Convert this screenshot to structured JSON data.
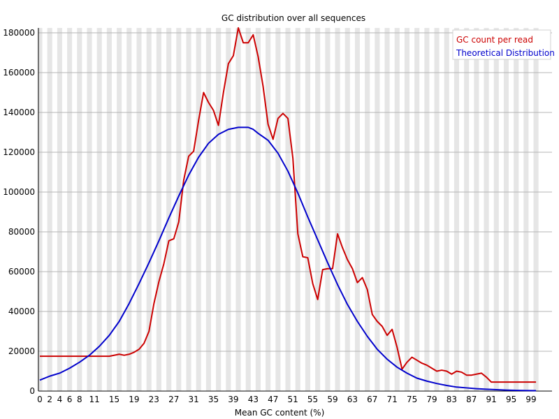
{
  "chart_data": {
    "type": "line",
    "title": "GC distribution over all sequences",
    "xlabel": "Mean GC content (%)",
    "ylabel": "",
    "xlim": [
      0,
      100
    ],
    "ylim": [
      0,
      180000
    ],
    "grid": true,
    "legend_position": "top-right",
    "x_tick_labels": [
      "0",
      "2",
      "4",
      "6",
      "8",
      "11",
      "15",
      "19",
      "23",
      "27",
      "31",
      "35",
      "39",
      "43",
      "47",
      "51",
      "55",
      "59",
      "63",
      "67",
      "71",
      "75",
      "79",
      "83",
      "87",
      "91",
      "95",
      "99"
    ],
    "x_tick_values": [
      0,
      2,
      4,
      6,
      8,
      11,
      15,
      19,
      23,
      27,
      31,
      35,
      39,
      43,
      47,
      51,
      55,
      59,
      63,
      67,
      71,
      75,
      79,
      83,
      87,
      91,
      95,
      99
    ],
    "y_tick_labels": [
      "0",
      "20000",
      "40000",
      "60000",
      "80000",
      "100000",
      "120000",
      "140000",
      "160000",
      "180000"
    ],
    "y_tick_values": [
      0,
      20000,
      40000,
      60000,
      80000,
      100000,
      120000,
      140000,
      160000,
      180000
    ],
    "series": [
      {
        "name": "GC count per read",
        "color": "#cc0000",
        "x": [
          0,
          2,
          4,
          6,
          8,
          10,
          12,
          14,
          16,
          17,
          18,
          19,
          20,
          21,
          22,
          23,
          24,
          25,
          26,
          27,
          28,
          29,
          30,
          31,
          32,
          33,
          34,
          35,
          36,
          37,
          38,
          39,
          40,
          41,
          42,
          43,
          44,
          45,
          46,
          47,
          48,
          49,
          50,
          51,
          52,
          53,
          54,
          55,
          56,
          57,
          58,
          59,
          60,
          61,
          62,
          63,
          64,
          65,
          66,
          67,
          68,
          69,
          70,
          71,
          72,
          73,
          74,
          75,
          76,
          77,
          78,
          79,
          80,
          81,
          82,
          83,
          84,
          85,
          86,
          87,
          88,
          89,
          90,
          91,
          92,
          93,
          94,
          95,
          96,
          97,
          98,
          99,
          100
        ],
        "values": [
          17500,
          17500,
          17500,
          17500,
          17500,
          17500,
          17500,
          17500,
          18500,
          18000,
          18500,
          19500,
          21000,
          24000,
          30000,
          44000,
          55000,
          64000,
          75500,
          76500,
          85000,
          106000,
          118000,
          120500,
          136000,
          150000,
          145000,
          141000,
          133500,
          150000,
          164500,
          168500,
          182500,
          175000,
          175000,
          179000,
          168000,
          153000,
          134000,
          126500,
          137000,
          139500,
          137000,
          117000,
          79000,
          67500,
          67000,
          54000,
          46000,
          61000,
          61500,
          61500,
          79000,
          72000,
          66000,
          61500,
          54500,
          57000,
          51000,
          38500,
          35000,
          32500,
          28000,
          31000,
          22000,
          11000,
          14500,
          17000,
          15500,
          14000,
          13000,
          11500,
          10000,
          10500,
          10000,
          8500,
          10000,
          9500,
          8000,
          8000,
          8500,
          9000,
          7000,
          4500,
          4500,
          4500,
          4500,
          4500,
          4500,
          4500,
          4500,
          4500,
          4500
        ]
      },
      {
        "name": "Theoretical Distribution",
        "color": "#0000cc",
        "x": [
          0,
          2,
          4,
          6,
          8,
          10,
          12,
          14,
          16,
          18,
          20,
          22,
          24,
          26,
          28,
          30,
          32,
          34,
          36,
          38,
          40,
          41,
          42,
          43,
          44,
          46,
          48,
          50,
          52,
          54,
          56,
          58,
          60,
          62,
          64,
          66,
          68,
          70,
          72,
          74,
          76,
          78,
          80,
          82,
          84,
          86,
          88,
          90,
          92,
          94,
          96,
          98,
          100
        ],
        "values": [
          5500,
          7500,
          9000,
          11500,
          14500,
          18000,
          22500,
          28000,
          35000,
          44000,
          54000,
          64500,
          75500,
          87000,
          98000,
          108500,
          117500,
          124500,
          129000,
          131500,
          132500,
          132500,
          132500,
          131500,
          129500,
          126000,
          119500,
          110500,
          99500,
          87500,
          76000,
          64500,
          53500,
          43500,
          35000,
          27500,
          21000,
          16000,
          12000,
          9000,
          6500,
          5000,
          3800,
          2800,
          2000,
          1600,
          1200,
          900,
          700,
          500,
          350,
          250,
          200
        ]
      }
    ]
  }
}
